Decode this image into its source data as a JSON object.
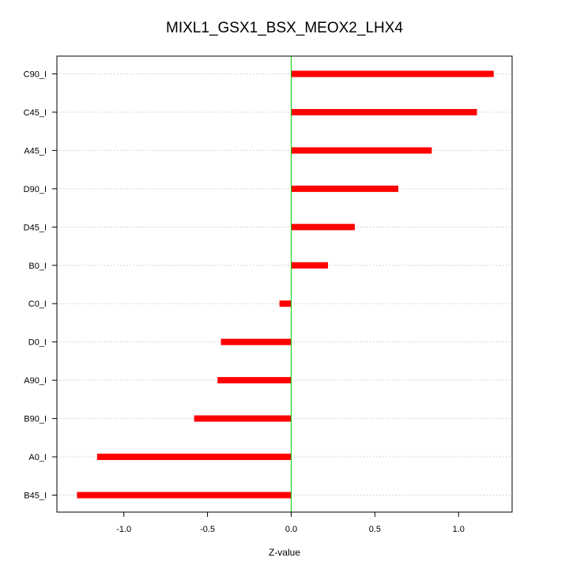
{
  "chart_data": {
    "type": "bar",
    "orientation": "horizontal",
    "title": "MIXL1_GSX1_BSX_MEOX2_LHX4",
    "xlabel": "Z-value",
    "ylabel": "",
    "xlim": [
      -1.4,
      1.32
    ],
    "xticks": [
      -1.0,
      -0.5,
      0.0,
      0.5,
      1.0
    ],
    "xtick_labels": [
      "-1.0",
      "-0.5",
      "0.0",
      "0.5",
      "1.0"
    ],
    "categories": [
      "C90_I",
      "C45_I",
      "A45_I",
      "D90_I",
      "D45_I",
      "B0_I",
      "C0_I",
      "D0_I",
      "A90_I",
      "B90_I",
      "A0_I",
      "B45_I"
    ],
    "values": [
      1.21,
      1.11,
      0.84,
      0.64,
      0.38,
      0.22,
      -0.07,
      -0.42,
      -0.44,
      -0.58,
      -1.16,
      -1.28
    ],
    "bar_color": "#ff0000",
    "zero_line_color": "#00cc00",
    "grid": "horizontal-dotted"
  }
}
